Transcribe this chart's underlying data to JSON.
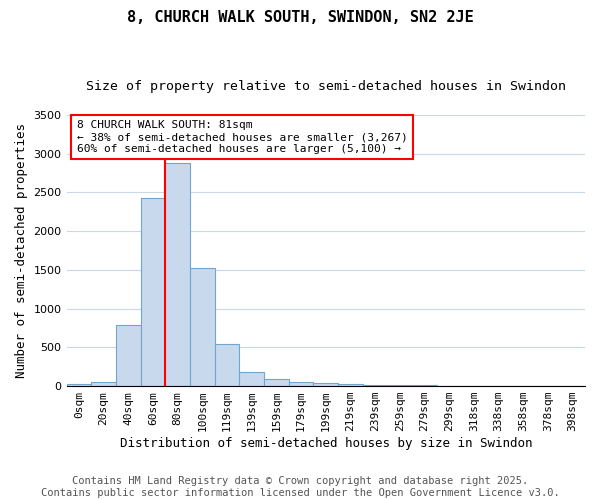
{
  "title": "8, CHURCH WALK SOUTH, SWINDON, SN2 2JE",
  "subtitle": "Size of property relative to semi-detached houses in Swindon",
  "xlabel": "Distribution of semi-detached houses by size in Swindon",
  "ylabel": "Number of semi-detached properties",
  "bin_labels": [
    "0sqm",
    "20sqm",
    "40sqm",
    "60sqm",
    "80sqm",
    "100sqm",
    "119sqm",
    "139sqm",
    "159sqm",
    "179sqm",
    "199sqm",
    "219sqm",
    "239sqm",
    "259sqm",
    "279sqm",
    "299sqm",
    "318sqm",
    "338sqm",
    "358sqm",
    "378sqm",
    "398sqm"
  ],
  "bar_heights": [
    30,
    55,
    790,
    2430,
    2880,
    1520,
    545,
    185,
    95,
    55,
    40,
    25,
    20,
    18,
    15,
    5,
    5,
    3,
    2,
    2,
    1
  ],
  "bar_color": "#c9d9ed",
  "bar_edge_color": "#6ea6cd",
  "red_line_bin": 3.5,
  "annotation_text": "8 CHURCH WALK SOUTH: 81sqm\n← 38% of semi-detached houses are smaller (3,267)\n60% of semi-detached houses are larger (5,100) →",
  "ylim": [
    0,
    3500
  ],
  "yticks": [
    0,
    500,
    1000,
    1500,
    2000,
    2500,
    3000,
    3500
  ],
  "footer_line1": "Contains HM Land Registry data © Crown copyright and database right 2025.",
  "footer_line2": "Contains public sector information licensed under the Open Government Licence v3.0.",
  "bg_color": "#ffffff",
  "grid_color": "#c8d8ea",
  "title_fontsize": 11,
  "subtitle_fontsize": 9.5,
  "axis_label_fontsize": 9,
  "tick_fontsize": 8,
  "annotation_fontsize": 8,
  "footer_fontsize": 7.5
}
